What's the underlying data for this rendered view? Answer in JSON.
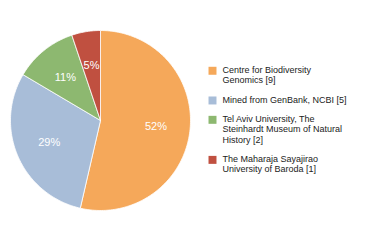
{
  "chart_data": {
    "type": "pie",
    "categories": [
      "Centre for Biodiversity\nGenomics [9]",
      "Mined from GenBank, NCBI [5]",
      "Tel Aviv University, The\nSteinhardt Museum of Natural\nHistory [2]",
      "The Maharaja Sayajirao\nUniversity of Baroda [1]"
    ],
    "values": [
      52,
      29,
      11,
      5
    ],
    "value_labels": [
      "52%",
      "29%",
      "11%",
      "5%"
    ],
    "colors": [
      "#F5A85A",
      "#A8BDD8",
      "#8DB870",
      "#C05040"
    ],
    "data_labels": true,
    "legend": "right"
  }
}
